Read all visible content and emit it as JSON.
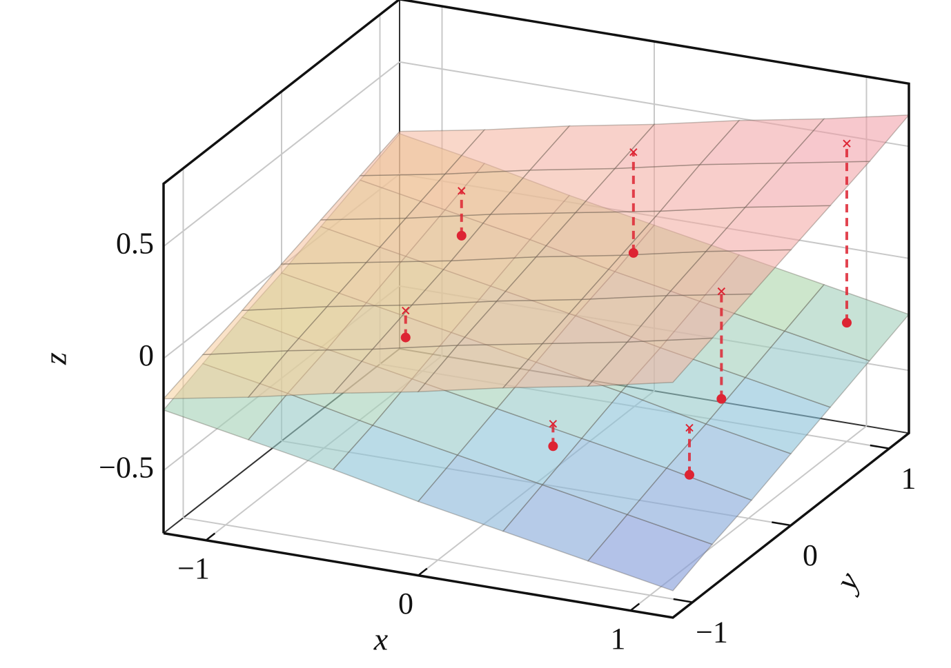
{
  "chart_data": {
    "type": "surface3d",
    "xlabel": "x",
    "ylabel": "y",
    "zlabel": "z",
    "xlim": [
      -1.2,
      1.2
    ],
    "ylim": [
      -1.2,
      1.2
    ],
    "zlim": [
      -0.78,
      0.78
    ],
    "xticks": [
      {
        "value": -1,
        "label": "−1"
      },
      0,
      1
    ],
    "yticks": [
      {
        "value": -1,
        "label": "−1"
      },
      0,
      1
    ],
    "zticks": [
      {
        "value": -0.5,
        "label": "−0.5"
      },
      0,
      0.5
    ],
    "grid": true,
    "surfaces": [
      {
        "x": [
          -1.2,
          -0.8,
          -0.4,
          0,
          0.4,
          0.8,
          1.2
        ],
        "y": [
          -1.2,
          -0.8,
          -0.4,
          0,
          0.4,
          0.8,
          1.2
        ],
        "z": [
          [
            -0.23,
            -0.3,
            -0.37,
            -0.45,
            -0.52,
            -0.59,
            -0.66
          ],
          [
            -0.16,
            -0.23,
            -0.31,
            -0.38,
            -0.45,
            -0.52,
            -0.59
          ],
          [
            -0.09,
            -0.17,
            -0.24,
            -0.31,
            -0.38,
            -0.45,
            -0.53
          ],
          [
            -0.03,
            -0.1,
            -0.17,
            -0.24,
            -0.31,
            -0.39,
            -0.46
          ],
          [
            0.04,
            -0.03,
            -0.1,
            -0.17,
            -0.25,
            -0.32,
            -0.39
          ],
          [
            0.11,
            0.04,
            -0.03,
            -0.11,
            -0.18,
            -0.25,
            -0.32
          ],
          [
            0.18,
            0.11,
            0.03,
            -0.04,
            -0.11,
            -0.18,
            -0.25
          ]
        ],
        "colormap": [
          "#7d8cd8",
          "#8cc3d8",
          "#b9dc98",
          "#f2d496"
        ],
        "opacity": 0.6
      },
      {
        "x": [
          -1.2,
          -0.8,
          -0.4,
          0,
          0.4,
          0.8,
          1.2
        ],
        "y": [
          -1.2,
          -0.8,
          -0.4,
          0,
          0.4,
          0.8,
          1.2
        ],
        "z": [
          [
            -0.18,
            -0.11,
            -0.03,
            0.04,
            0.12,
            0.19,
            0.27
          ],
          [
            -0.12,
            -0.04,
            0.03,
            0.11,
            0.18,
            0.25,
            0.33
          ],
          [
            -0.06,
            0.02,
            0.09,
            0.17,
            0.24,
            0.32,
            0.39
          ],
          [
            0.01,
            0.08,
            0.15,
            0.23,
            0.3,
            0.38,
            0.45
          ],
          [
            0.07,
            0.14,
            0.22,
            0.29,
            0.36,
            0.44,
            0.51
          ],
          [
            0.13,
            0.2,
            0.28,
            0.35,
            0.43,
            0.5,
            0.57
          ],
          [
            0.19,
            0.26,
            0.34,
            0.41,
            0.49,
            0.56,
            0.64
          ]
        ],
        "colormap": [
          "#f6d49a",
          "#f4b49c",
          "#f095a6"
        ],
        "opacity": 0.55
      }
    ],
    "points": {
      "x": [
        -0.43,
        -0.63,
        0.45,
        0.18,
        1.0,
        0.78,
        1.0
      ],
      "y": [
        -0.4,
        0.6,
        -0.8,
        0.6,
        -0.6,
        0.2,
        1.0
      ],
      "z_observed": [
        -0.06,
        0.02,
        -0.27,
        0.07,
        -0.38,
        -0.35,
        -0.25
      ],
      "z_fitted": [
        0.06,
        0.22,
        -0.17,
        0.52,
        -0.17,
        0.13,
        0.55
      ],
      "color": "#dd2433"
    }
  }
}
